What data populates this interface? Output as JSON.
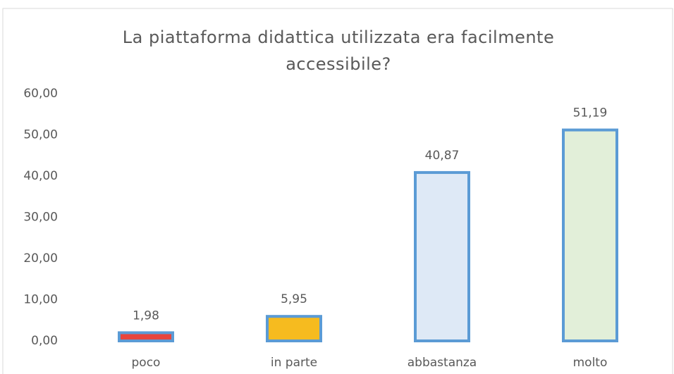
{
  "chart_data": {
    "type": "bar",
    "title": "La piattaforma didattica utilizzata era facilmente accessibile?",
    "categories": [
      "poco",
      "in parte",
      "abbastanza",
      "molto"
    ],
    "values": [
      1.98,
      5.95,
      40.87,
      51.19
    ],
    "value_labels": [
      "1,98",
      "5,95",
      "40,87",
      "51,19"
    ],
    "colors": [
      "#e8453c",
      "#f6bb1f",
      "#dee9f6",
      "#e2efd9"
    ],
    "edgecolor": "#5b9bd5",
    "ylim": [
      0,
      60
    ],
    "yticks": [
      {
        "value": 0,
        "label": "0,00"
      },
      {
        "value": 10,
        "label": "10,00"
      },
      {
        "value": 20,
        "label": "20,00"
      },
      {
        "value": 30,
        "label": "30,00"
      },
      {
        "value": 40,
        "label": "40,00"
      },
      {
        "value": 50,
        "label": "50,00"
      },
      {
        "value": 60,
        "label": "60,00"
      }
    ],
    "grid": false
  }
}
